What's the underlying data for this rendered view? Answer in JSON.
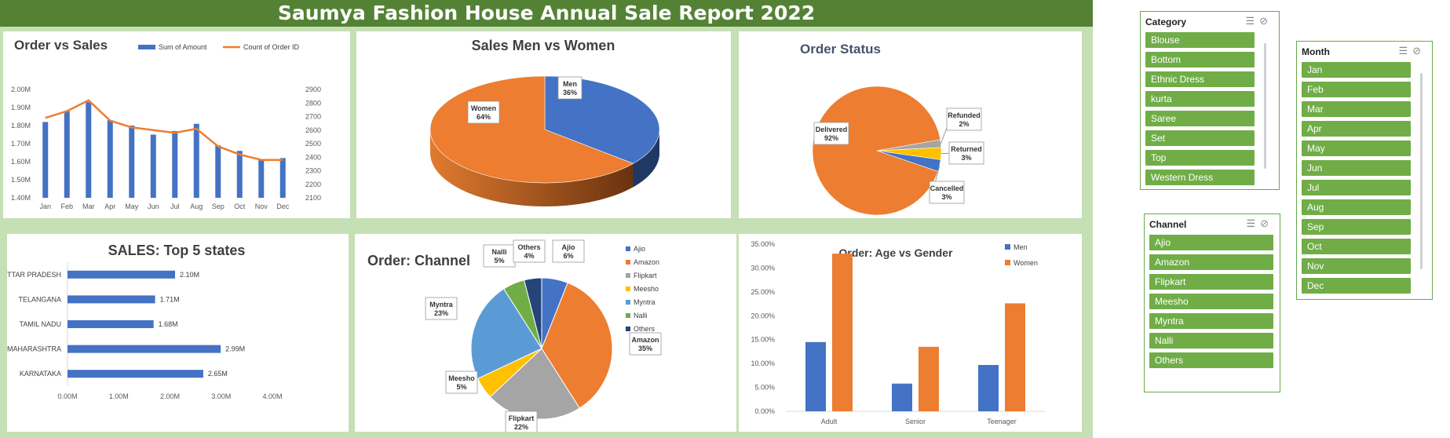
{
  "banner": {
    "title": "Saumya Fashion House Annual Sale Report 2022"
  },
  "chart_data": [
    {
      "type": "bar",
      "id": "order-vs-sales",
      "title": "Order vs Sales",
      "categories": [
        "Jan",
        "Feb",
        "Mar",
        "Apr",
        "May",
        "Jun",
        "Jul",
        "Aug",
        "Sep",
        "Oct",
        "Nov",
        "Dec"
      ],
      "series": [
        {
          "name": "Sum of Amount",
          "type": "bar",
          "axis": "left",
          "color": "#4472c4",
          "values": [
            1.82,
            1.88,
            1.93,
            1.83,
            1.8,
            1.75,
            1.77,
            1.81,
            1.69,
            1.66,
            1.61,
            1.62
          ]
        },
        {
          "name": "Count of Order ID",
          "type": "line",
          "axis": "right",
          "color": "#ed7d31",
          "values": [
            2690,
            2740,
            2820,
            2670,
            2620,
            2600,
            2580,
            2610,
            2480,
            2420,
            2380,
            2380
          ]
        }
      ],
      "y_left": {
        "ticks": [
          "1.40M",
          "1.50M",
          "1.60M",
          "1.70M",
          "1.80M",
          "1.90M",
          "2.00M"
        ],
        "ylim": [
          1.4,
          2.0
        ]
      },
      "y_right": {
        "ticks": [
          "2100",
          "2200",
          "2300",
          "2400",
          "2500",
          "2600",
          "2700",
          "2800",
          "2900"
        ],
        "ylim": [
          2100,
          2900
        ]
      },
      "legend": "top"
    },
    {
      "type": "pie",
      "id": "sales-men-women",
      "title": "Sales Men vs Women",
      "labels": [
        "Men",
        "Women"
      ],
      "values": [
        36,
        64
      ],
      "label_text": [
        "36%",
        "64%"
      ],
      "colors": [
        "#4472c4",
        "#ed7d31"
      ]
    },
    {
      "type": "pie",
      "id": "order-status",
      "title": "Order Status",
      "labels": [
        "Refunded",
        "Returned",
        "Cancelled",
        "Delivered"
      ],
      "values": [
        2,
        3,
        3,
        92
      ],
      "label_text": [
        "2%",
        "3%",
        "3%",
        "92%"
      ],
      "colors": [
        "#a5a5a5",
        "#ffc000",
        "#4472c4",
        "#ed7d31"
      ]
    },
    {
      "type": "bar",
      "orientation": "horizontal",
      "id": "top-states",
      "title": "SALES: Top  5 states",
      "categories": [
        "UTTAR PRADESH",
        "TELANGANA",
        "TAMIL NADU",
        "MAHARASHTRA",
        "KARNATAKA"
      ],
      "values": [
        2.1,
        1.71,
        1.68,
        2.99,
        2.65
      ],
      "value_labels": [
        "2.10M",
        "1.71M",
        "1.68M",
        "2.99M",
        "2.65M"
      ],
      "x_ticks": [
        "0.00M",
        "1.00M",
        "2.00M",
        "3.00M",
        "4.00M"
      ],
      "xlim": [
        0,
        4
      ],
      "color": "#4472c4"
    },
    {
      "type": "pie",
      "id": "order-channel",
      "title": "Order: Channel",
      "labels": [
        "Ajio",
        "Amazon",
        "Flipkart",
        "Meesho",
        "Myntra",
        "Nalli",
        "Others"
      ],
      "values": [
        6,
        35,
        22,
        5,
        23,
        5,
        4
      ],
      "label_text": [
        "6%",
        "35%",
        "22%",
        "5%",
        "23%",
        "5%",
        "4%"
      ],
      "colors": [
        "#4472c4",
        "#ed7d31",
        "#a5a5a5",
        "#ffc000",
        "#5b9bd5",
        "#70ad47",
        "#264478"
      ],
      "legend": "right"
    },
    {
      "type": "bar",
      "id": "age-vs-gender",
      "title": "Order: Age vs Gender",
      "categories": [
        "Adult",
        "Senior",
        "Teenager"
      ],
      "series": [
        {
          "name": "Men",
          "color": "#4472c4",
          "values": [
            14.5,
            5.8,
            9.7
          ]
        },
        {
          "name": "Women",
          "color": "#ed7d31",
          "values": [
            33.0,
            13.5,
            22.6
          ]
        }
      ],
      "y_ticks": [
        "0.00%",
        "5.00%",
        "10.00%",
        "15.00%",
        "20.00%",
        "25.00%",
        "30.00%",
        "35.00%"
      ],
      "ylim": [
        0,
        35
      ],
      "legend": "top-right"
    }
  ],
  "slicers": {
    "category": {
      "title": "Category",
      "items": [
        "Blouse",
        "Bottom",
        "Ethnic Dress",
        "kurta",
        "Saree",
        "Set",
        "Top",
        "Western Dress"
      ]
    },
    "channel": {
      "title": "Channel",
      "items": [
        "Ajio",
        "Amazon",
        "Flipkart",
        "Meesho",
        "Myntra",
        "Nalli",
        "Others"
      ]
    },
    "month": {
      "title": "Month",
      "items": [
        "Jan",
        "Feb",
        "Mar",
        "Apr",
        "May",
        "Jun",
        "Jul",
        "Aug",
        "Sep",
        "Oct",
        "Nov",
        "Dec"
      ]
    }
  }
}
